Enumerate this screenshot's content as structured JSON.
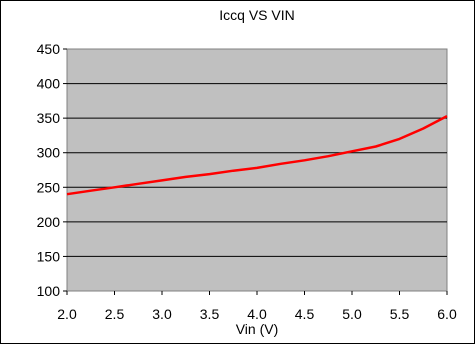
{
  "chart_data": {
    "type": "line",
    "title": "Iccq VS VIN",
    "xlabel": "Vin (V)",
    "ylabel": "",
    "xlim": [
      2.0,
      6.0
    ],
    "ylim": [
      100,
      450
    ],
    "x_ticks": [
      "2.0",
      "2.5",
      "3.0",
      "3.5",
      "4.0",
      "4.5",
      "5.0",
      "5.5",
      "6.0"
    ],
    "y_ticks": [
      "100",
      "150",
      "200",
      "250",
      "300",
      "350",
      "400",
      "450"
    ],
    "grid": "horizontal",
    "legend": "none",
    "plot_background": "#c0c0c0",
    "series": [
      {
        "color": "#ff0000",
        "x": [
          2.0,
          2.25,
          2.5,
          2.75,
          3.0,
          3.25,
          3.5,
          3.75,
          4.0,
          4.25,
          4.5,
          4.75,
          5.0,
          5.25,
          5.5,
          5.75,
          6.0
        ],
        "y": [
          240,
          245,
          250,
          255,
          260,
          265,
          269,
          274,
          278,
          284,
          289,
          295,
          302,
          309,
          320,
          335,
          353
        ]
      }
    ]
  }
}
